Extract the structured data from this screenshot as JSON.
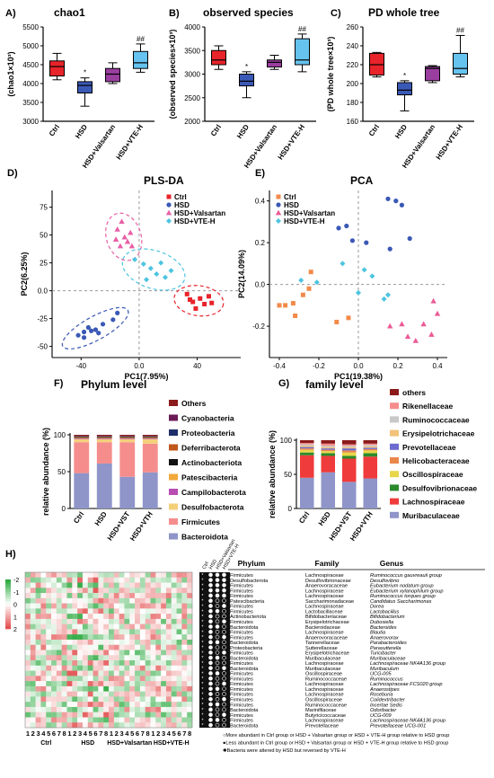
{
  "colors": {
    "ctrl": "#e8232a",
    "hsd": "#3a58b5",
    "valsartan": "#9a3fa0",
    "vteh": "#66c2ee",
    "others": "#8b1a1a",
    "phyla_palette": [
      "#8b1a1a",
      "#6a1a55",
      "#1f2f6b",
      "#c0561a",
      "#111111",
      "#f2a93b",
      "#b84db3",
      "#f4d07a",
      "#f58d8d",
      "#8f95c9"
    ],
    "family_palette": [
      "#8b1a1a",
      "#f58d8d",
      "#c8c8c8",
      "#f2c27a",
      "#6b6bd0",
      "#e9874a",
      "#e8d64a",
      "#2b8a2b",
      "#ef3b3b",
      "#8f95c9"
    ]
  },
  "panels": {
    "a": {
      "letter": "A)",
      "title": "chao1"
    },
    "b": {
      "letter": "B)",
      "title": "observed species"
    },
    "c": {
      "letter": "C)",
      "title": "PD whole tree"
    },
    "d": {
      "letter": "D)",
      "title": "PLS-DA"
    },
    "e": {
      "letter": "E)",
      "title": "PCA"
    },
    "f": {
      "letter": "F)",
      "title": "Phylum level"
    },
    "g": {
      "letter": "G)",
      "title": "family level"
    },
    "h": {
      "letter": "H)"
    }
  },
  "chart_data": [
    {
      "id": "a",
      "type": "box",
      "title": "chao1",
      "ylabel": "(chao1×10³)",
      "ylim": [
        3000,
        5500
      ],
      "yticks": [
        3000,
        3500,
        4000,
        4500,
        5000,
        5500
      ],
      "categories": [
        "Ctrl",
        "HSD",
        "HSD+Valsartan",
        "HSD+VTE-H"
      ],
      "boxes": [
        {
          "min": 4100,
          "q1": 4200,
          "median": 4450,
          "q3": 4600,
          "max": 4800
        },
        {
          "min": 3400,
          "q1": 3750,
          "median": 3950,
          "q3": 4050,
          "max": 4150
        },
        {
          "min": 4000,
          "q1": 4050,
          "median": 4250,
          "q3": 4400,
          "max": 4550
        },
        {
          "min": 4300,
          "q1": 4400,
          "median": 4550,
          "q3": 4850,
          "max": 5050
        }
      ],
      "marks": [
        "",
        "*",
        "",
        "##"
      ]
    },
    {
      "id": "b",
      "type": "box",
      "title": "observed species",
      "ylabel": "(observed species×10³)",
      "ylim": [
        2000,
        4000
      ],
      "yticks": [
        2000,
        2500,
        3000,
        3500,
        4000
      ],
      "categories": [
        "Ctrl",
        "HSD",
        "HSD+Valsartan",
        "HSD+VTE-H"
      ],
      "boxes": [
        {
          "min": 3100,
          "q1": 3200,
          "median": 3300,
          "q3": 3500,
          "max": 3600
        },
        {
          "min": 2500,
          "q1": 2750,
          "median": 2850,
          "q3": 3000,
          "max": 3050
        },
        {
          "min": 3100,
          "q1": 3150,
          "median": 3250,
          "q3": 3300,
          "max": 3400
        },
        {
          "min": 3050,
          "q1": 3200,
          "median": 3300,
          "q3": 3750,
          "max": 3850
        }
      ],
      "marks": [
        "",
        "*",
        "",
        "##"
      ]
    },
    {
      "id": "c",
      "type": "box",
      "title": "PD whole tree",
      "ylabel": "(PD whole tree×10³)",
      "ylim": [
        160,
        260
      ],
      "yticks": [
        160,
        180,
        200,
        220,
        240,
        260
      ],
      "categories": [
        "Ctrl",
        "HSD",
        "HSD+Valsartan",
        "HSD+VTE-H"
      ],
      "boxes": [
        {
          "min": 207,
          "q1": 209,
          "median": 220,
          "q3": 232,
          "max": 233
        },
        {
          "min": 171,
          "q1": 188,
          "median": 193,
          "q3": 201,
          "max": 203
        },
        {
          "min": 201,
          "q1": 203,
          "median": 216,
          "q3": 218,
          "max": 219
        },
        {
          "min": 207,
          "q1": 210,
          "median": 216,
          "q3": 232,
          "max": 251
        }
      ],
      "marks": [
        "",
        "*",
        "",
        "##"
      ]
    },
    {
      "id": "d",
      "type": "scatter",
      "title": "PLS-DA",
      "xlabel": "PC1(7.95%)",
      "ylabel": "PC2(6.25%)",
      "xlim": [
        -60,
        70
      ],
      "ylim": [
        -60,
        90
      ],
      "xticks": [
        -40,
        0,
        40
      ],
      "yticks": [
        -50,
        -25,
        0,
        25,
        50,
        75
      ],
      "series": [
        {
          "name": "Ctrl",
          "color": "#e8232a",
          "marker": "square",
          "points": [
            [
              33,
              -3
            ],
            [
              37,
              -10
            ],
            [
              42,
              -7
            ],
            [
              45,
              -12
            ],
            [
              48,
              -5
            ],
            [
              50,
              -11
            ],
            [
              39,
              -16
            ],
            [
              35,
              -8
            ]
          ]
        },
        {
          "name": "HSD",
          "color": "#3a58b5",
          "marker": "circle",
          "points": [
            [
              -42,
              -40
            ],
            [
              -38,
              -37
            ],
            [
              -35,
              -33
            ],
            [
              -33,
              -36
            ],
            [
              -30,
              -35
            ],
            [
              -28,
              -38
            ],
            [
              -25,
              -30
            ],
            [
              -18,
              -26
            ],
            [
              -15,
              -20
            ],
            [
              -38,
              -42
            ]
          ]
        },
        {
          "name": "HSD+Valsartan",
          "color": "#e85fa6",
          "marker": "triangle",
          "points": [
            [
              -12,
              62
            ],
            [
              -15,
              55
            ],
            [
              -10,
              48
            ],
            [
              -8,
              44
            ],
            [
              -5,
              40
            ],
            [
              -13,
              40
            ],
            [
              -16,
              46
            ],
            [
              -6,
              52
            ]
          ]
        },
        {
          "name": "HSD+VTE-H",
          "color": "#4cc4e0",
          "marker": "diamond",
          "points": [
            [
              -3,
              28
            ],
            [
              3,
              24
            ],
            [
              8,
              20
            ],
            [
              12,
              15
            ],
            [
              18,
              12
            ],
            [
              22,
              18
            ],
            [
              5,
              10
            ],
            [
              15,
              25
            ]
          ]
        }
      ]
    },
    {
      "id": "e",
      "type": "scatter",
      "title": "PCA",
      "xlabel": "PC1(19.38%)",
      "ylabel": "PC2(14.09%)",
      "xlim": [
        -0.45,
        0.45
      ],
      "ylim": [
        -0.35,
        0.45
      ],
      "xticks": [
        -0.4,
        -0.2,
        0.0,
        0.2,
        0.4
      ],
      "yticks": [
        -0.2,
        0.0,
        0.2,
        0.4
      ],
      "series": [
        {
          "name": "Ctrl",
          "color": "#f28a4a",
          "marker": "square",
          "points": [
            [
              -0.37,
              -0.1
            ],
            [
              -0.33,
              -0.09
            ],
            [
              -0.28,
              -0.05
            ],
            [
              -0.25,
              -0.02
            ],
            [
              -0.24,
              0.06
            ],
            [
              -0.32,
              -0.15
            ],
            [
              -0.11,
              -0.18
            ],
            [
              -0.05,
              -0.16
            ],
            [
              -0.4,
              -0.1
            ]
          ]
        },
        {
          "name": "HSD",
          "color": "#3a58b5",
          "marker": "circle",
          "points": [
            [
              -0.1,
              0.27
            ],
            [
              -0.06,
              0.28
            ],
            [
              -0.03,
              0.21
            ],
            [
              0.04,
              0.2
            ],
            [
              0.15,
              0.41
            ],
            [
              0.19,
              0.4
            ],
            [
              0.22,
              0.38
            ],
            [
              0.16,
              0.17
            ],
            [
              0.26,
              0.22
            ]
          ]
        },
        {
          "name": "HSD+Valsartan",
          "color": "#ec5a96",
          "marker": "triangle",
          "points": [
            [
              0.16,
              -0.2
            ],
            [
              0.22,
              -0.19
            ],
            [
              0.25,
              -0.25
            ],
            [
              0.29,
              -0.27
            ],
            [
              0.33,
              -0.19
            ],
            [
              0.37,
              -0.24
            ],
            [
              0.4,
              -0.14
            ],
            [
              0.38,
              -0.08
            ]
          ]
        },
        {
          "name": "HSD+VTE-H",
          "color": "#4cc4e0",
          "marker": "diamond",
          "points": [
            [
              -0.29,
              0.02
            ],
            [
              -0.21,
              0.01
            ],
            [
              0.0,
              -0.04
            ],
            [
              0.07,
              0.04
            ],
            [
              0.03,
              0.07
            ],
            [
              0.13,
              -0.07
            ],
            [
              0.15,
              -0.05
            ],
            [
              -0.08,
              0.1
            ]
          ]
        }
      ]
    },
    {
      "id": "f",
      "type": "stacked-bar",
      "title": "Phylum level",
      "ylabel": "relative abundance (%)",
      "ylim": [
        0,
        100
      ],
      "yticks": [
        0,
        50,
        100
      ],
      "categories": [
        "Ctrl",
        "HSD",
        "HSD+VST",
        "HSD+VTH"
      ],
      "series": [
        {
          "name": "Bacteroidota",
          "values": [
            48,
            61,
            43,
            49
          ]
        },
        {
          "name": "Firmicutes",
          "values": [
            42,
            29,
            47,
            39
          ]
        },
        {
          "name": "Desulfobacterota",
          "values": [
            4,
            4,
            4,
            6
          ]
        },
        {
          "name": "Campilobacterota",
          "values": [
            1,
            1,
            1,
            1
          ]
        },
        {
          "name": "Patescibacteria",
          "values": [
            1,
            1,
            1,
            1
          ]
        },
        {
          "name": "Actinobacteriota",
          "values": [
            1,
            1,
            1,
            1
          ]
        },
        {
          "name": "Deferribacterota",
          "values": [
            0.5,
            0.5,
            0.5,
            0.5
          ]
        },
        {
          "name": "Proteobacteria",
          "values": [
            0.5,
            0.5,
            0.5,
            0.5
          ]
        },
        {
          "name": "Cyanobacteria",
          "values": [
            0.5,
            0.5,
            0.5,
            0.5
          ]
        },
        {
          "name": "Others",
          "values": [
            1.5,
            1.5,
            1.5,
            1.5
          ]
        }
      ],
      "legend": [
        "Others",
        "Cyanobacteria",
        "Proteobacteria",
        "Deferribacterota",
        "Actinobacteriota",
        "Patescibacteria",
        "Campilobacterota",
        "Desulfobacterota",
        "Firmicutes",
        "Bacteroidota"
      ]
    },
    {
      "id": "g",
      "type": "stacked-bar",
      "title": "family level",
      "ylabel": "relative abundance (%)",
      "ylim": [
        0,
        100
      ],
      "yticks": [
        0,
        50,
        100
      ],
      "categories": [
        "Ctrl",
        "HSD",
        "HSD+VST",
        "HSD+VTH"
      ],
      "series": [
        {
          "name": "Muribaculaceae",
          "values": [
            45,
            53,
            39,
            44
          ]
        },
        {
          "name": "Lachnospiraceae",
          "values": [
            33,
            24,
            34,
            32
          ]
        },
        {
          "name": "Desulfovibrionaceae",
          "values": [
            4,
            4,
            4,
            5
          ]
        },
        {
          "name": "Oscillospiraceae",
          "values": [
            4,
            3,
            5,
            4
          ]
        },
        {
          "name": "Helicobacteraceae",
          "values": [
            2,
            2,
            3,
            2
          ]
        },
        {
          "name": "Prevotellaceae",
          "values": [
            2,
            2,
            3,
            2
          ]
        },
        {
          "name": "Erysipelotrichaceae",
          "values": [
            2,
            2,
            2,
            2
          ]
        },
        {
          "name": "Ruminococcaceae",
          "values": [
            2,
            2,
            2,
            2
          ]
        },
        {
          "name": "Rikenellaceae",
          "values": [
            2,
            3,
            2,
            2
          ]
        },
        {
          "name": "others",
          "values": [
            4,
            5,
            6,
            5
          ]
        }
      ],
      "legend": [
        "others",
        "Rikenellaceae",
        "Ruminococcaceae",
        "Erysipelotrichaceae",
        "Prevotellaceae",
        "Helicobacteraceae",
        "Oscillospiraceae",
        "Desulfovibrionaceae",
        "Lachnospiraceae",
        "Muribaculaceae"
      ]
    },
    {
      "id": "h",
      "type": "heatmap",
      "scale_ticks": [
        "-2",
        "-1",
        "0",
        "1",
        "2"
      ],
      "group_labels": [
        "Ctrl",
        "HSD",
        "HSD+Valsartan",
        "HSD+VTE-H"
      ],
      "column_numbers": [
        "1",
        "2",
        "3",
        "4",
        "5",
        "6",
        "7",
        "8",
        "1",
        "2",
        "3",
        "4",
        "5",
        "6",
        "7",
        "8",
        "1",
        "2",
        "3",
        "4",
        "5",
        "6",
        "7",
        "8",
        "1",
        "2",
        "3",
        "4",
        "5",
        "6",
        "7",
        "8"
      ],
      "mark_column_headers": [
        "Ctrl",
        "HSD",
        "HSD+Valsartan",
        "HSD+VTE-H"
      ],
      "table_headers": [
        "Phylum",
        "Family",
        "Genus"
      ],
      "rows": [
        [
          "Firmicutes",
          "Lachnospiraceae",
          "Ruminococcus gauvreauii group"
        ],
        [
          "Desulfobacterota",
          "Desulfovibrionaceae",
          "Desulfovibrio"
        ],
        [
          "Firmicutes",
          "Anaerovoracaceae",
          "Eubacterium nodatum group"
        ],
        [
          "Firmicutes",
          "Lachnospiraceae",
          "Eubacterium xylanophilum group"
        ],
        [
          "Firmicutes",
          "Lachnospiraceae",
          "Ruminococcus torques group"
        ],
        [
          "Patescibacteria",
          "Saccharimonadaceae",
          "Candidatus Saccharimonas"
        ],
        [
          "Firmicutes",
          "Lachnospiraceae",
          "Dorea"
        ],
        [
          "Firmicutes",
          "Lactobacillaceae",
          "Lactobacillus"
        ],
        [
          "Actinobacteriota",
          "Bifidobacteriaceae",
          "Bifidobacterium"
        ],
        [
          "Firmicutes",
          "Erysipelotrichaceae",
          "Dubosiella"
        ],
        [
          "Bacteroidota",
          "Bacteroidaceae",
          "Bacteroides"
        ],
        [
          "Firmicutes",
          "Lachnospiraceae",
          "Blautia"
        ],
        [
          "Firmicutes",
          "Anaerovoracaceae",
          "Anaerovorax"
        ],
        [
          "Bacteroidota",
          "Tannerellaceae",
          "Parabacteroides"
        ],
        [
          "Proteobacteria",
          "Sutterellaceae",
          "Parasutterella"
        ],
        [
          "Firmicutes",
          "Erysipelotrichaceae",
          "Turicibacter"
        ],
        [
          "Bacteroidota",
          "Muribaculaceae",
          "Muribaculaceae"
        ],
        [
          "Firmicutes",
          "Lachnospiraceae",
          "Lachnospiraceae NK4A136 group"
        ],
        [
          "Bacteroidota",
          "Muribaculaceae",
          "Muribaculum"
        ],
        [
          "Firmicutes",
          "Oscillospiraceae",
          "UCG-005"
        ],
        [
          "Firmicutes",
          "Ruminococcaceae",
          "Ruminococcus"
        ],
        [
          "Firmicutes",
          "Lachnospiraceae",
          "Lachnospiraceae FCS020 group"
        ],
        [
          "Firmicutes",
          "Lachnospiraceae",
          "Anaerostipes"
        ],
        [
          "Firmicutes",
          "Lachnospiraceae",
          "Roseburia"
        ],
        [
          "Firmicutes",
          "Oscillospiraceae",
          "Colidextribacter"
        ],
        [
          "Firmicutes",
          "Ruminococcaceae",
          "Incertae Sedis"
        ],
        [
          "Bacteroidota",
          "Marinifilaceae",
          "Odoribacter"
        ],
        [
          "Firmicutes",
          "Butyricicoccaceae",
          "UCG-009"
        ],
        [
          "Firmicutes",
          "Lachnospiraceae",
          "Lachnospiraceae NK4A136 group"
        ],
        [
          "Bacteroidota",
          "Prevotellaceae",
          "Prevotellaceae UCG-001"
        ]
      ],
      "footnotes": [
        "○More abundant in Ctrl group or HSD + Valsartan  group or HSD + VTE-H group relative to HSD group",
        "●Less abundant in Ctrl group or HSD + Valsartan  group or HSD + VTE-H group relative to HSD group",
        "✱Bacteria were altered by HSD but reversed by VTE-H"
      ]
    }
  ]
}
